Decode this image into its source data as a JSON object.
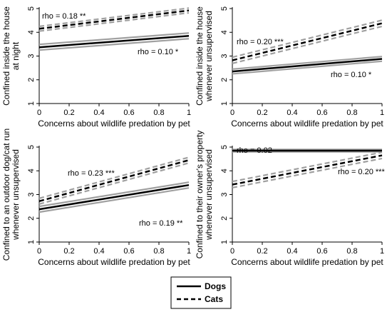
{
  "legend": {
    "items": [
      {
        "label": "Dogs",
        "style": "solid"
      },
      {
        "label": "Cats",
        "style": "dashed"
      }
    ]
  },
  "colors": {
    "line": "#000000",
    "ci": "#a0a0a0",
    "axis": "#000000"
  },
  "chart_data": [
    {
      "type": "line",
      "xlabel": "Concerns about wildlife predation by pet",
      "ylabel": [
        "Confined inside the house",
        "at night"
      ],
      "xlim": [
        0,
        1
      ],
      "ylim": [
        1,
        5
      ],
      "xticks": [
        "0",
        "0.2",
        "0.4",
        "0.6",
        "0.8",
        "1"
      ],
      "yticks": [
        "1",
        "2",
        "3",
        "4",
        "5"
      ],
      "series": [
        {
          "name": "Dogs",
          "x": [
            0,
            1
          ],
          "values": [
            3.37,
            3.85
          ],
          "ci": 0.12
        },
        {
          "name": "Cats",
          "x": [
            0,
            1
          ],
          "values": [
            4.15,
            4.92
          ],
          "ci": 0.1
        }
      ],
      "annotations": [
        {
          "text": "rho = 0.18 **",
          "series": "Cats"
        },
        {
          "text": "rho = 0.10 *",
          "series": "Dogs"
        }
      ]
    },
    {
      "type": "line",
      "xlabel": "Concerns about wildlife predation by pet",
      "ylabel": [
        "Confined inside the house",
        "whenever unsupervised"
      ],
      "xlim": [
        0,
        1
      ],
      "ylim": [
        1,
        5
      ],
      "xticks": [
        "0",
        "0.2",
        "0.4",
        "0.6",
        "0.8",
        "1"
      ],
      "yticks": [
        "1",
        "2",
        "3",
        "4",
        "5"
      ],
      "series": [
        {
          "name": "Dogs",
          "x": [
            0,
            1
          ],
          "values": [
            2.35,
            2.88
          ],
          "ci": 0.1
        },
        {
          "name": "Cats",
          "x": [
            0,
            1
          ],
          "values": [
            2.82,
            4.38
          ],
          "ci": 0.13
        }
      ],
      "annotations": [
        {
          "text": "rho = 0.20 ***",
          "series": "Cats"
        },
        {
          "text": "rho = 0.10 *",
          "series": "Dogs"
        }
      ]
    },
    {
      "type": "line",
      "xlabel": "Concerns about wildlife predation by pet",
      "ylabel": [
        "Confined to an outdoor dog/cat run",
        "whenever unsupervised"
      ],
      "xlim": [
        0,
        1
      ],
      "ylim": [
        1,
        5
      ],
      "xticks": [
        "0",
        "0.2",
        "0.4",
        "0.6",
        "0.8",
        "1"
      ],
      "yticks": [
        "1",
        "2",
        "3",
        "4",
        "5"
      ],
      "series": [
        {
          "name": "Dogs",
          "x": [
            0,
            1
          ],
          "values": [
            2.38,
            3.4
          ],
          "ci": 0.12
        },
        {
          "name": "Cats",
          "x": [
            0,
            1
          ],
          "values": [
            2.72,
            4.45
          ],
          "ci": 0.12
        }
      ],
      "annotations": [
        {
          "text": "rho = 0.23 ***",
          "series": "Cats"
        },
        {
          "text": "rho = 0.19 **",
          "series": "Dogs"
        }
      ]
    },
    {
      "type": "line",
      "xlabel": "Concerns about wildlife predation by pet",
      "ylabel": [
        "Confined to their owner's property",
        "whenever unsupervised"
      ],
      "xlim": [
        0,
        1
      ],
      "ylim": [
        1,
        5
      ],
      "xticks": [
        "0",
        "0.2",
        "0.4",
        "0.6",
        "0.8",
        "1"
      ],
      "yticks": [
        "1",
        "2",
        "3",
        "4",
        "5"
      ],
      "series": [
        {
          "name": "Dogs",
          "x": [
            0,
            1
          ],
          "values": [
            4.85,
            4.85
          ],
          "ci": 0.05
        },
        {
          "name": "Cats",
          "x": [
            0,
            1
          ],
          "values": [
            3.42,
            4.65
          ],
          "ci": 0.13
        }
      ],
      "annotations": [
        {
          "text": "rho = 0.02",
          "series": "Dogs"
        },
        {
          "text": "rho = 0.20 ***",
          "series": "Cats"
        }
      ]
    }
  ]
}
